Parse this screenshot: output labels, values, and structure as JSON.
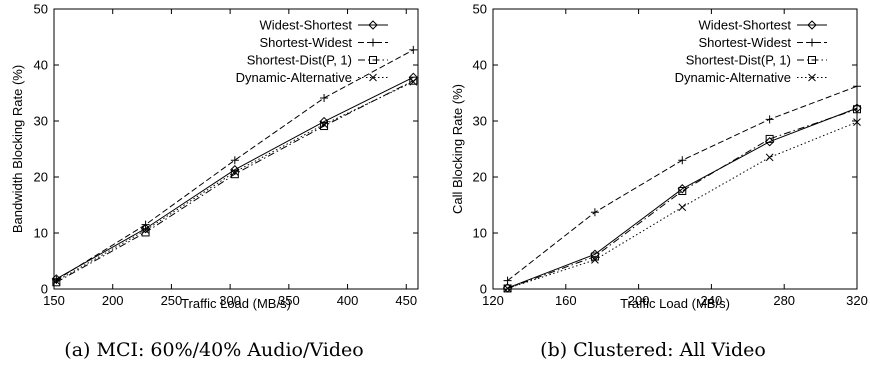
{
  "chart_data": [
    {
      "type": "line",
      "caption": "(a) MCI: 60%/40% Audio/Video",
      "xlabel": "Traffic Load (MB/s)",
      "ylabel": "Bandwidth Blocking Rate (%)",
      "xlim": [
        150,
        460
      ],
      "ylim": [
        0,
        50
      ],
      "xticks": [
        150,
        200,
        250,
        300,
        350,
        400,
        450
      ],
      "yticks": [
        0,
        10,
        20,
        30,
        40,
        50
      ],
      "grid": false,
      "legend": "top-right",
      "series": [
        {
          "name": "Widest-Shortest",
          "marker": "diamond",
          "dash": "solid",
          "x": [
            152,
            228,
            304,
            380,
            456
          ],
          "y": [
            1.8,
            10.8,
            21.3,
            29.9,
            37.8
          ]
        },
        {
          "name": "Shortest-Widest",
          "marker": "plus",
          "dash": "dashed",
          "x": [
            152,
            228,
            304,
            380,
            456
          ],
          "y": [
            1.6,
            11.5,
            23.0,
            34.1,
            42.7
          ]
        },
        {
          "name": "Shortest-Dist(P, 1)",
          "marker": "square",
          "dash": "dashdot",
          "x": [
            152,
            228,
            304,
            380,
            456
          ],
          "y": [
            1.2,
            10.1,
            20.5,
            29.1,
            37.2
          ]
        },
        {
          "name": "Dynamic-Alternative",
          "marker": "cross",
          "dash": "dotted",
          "x": [
            152,
            228,
            304,
            380,
            456
          ],
          "y": [
            1.4,
            10.5,
            20.9,
            29.4,
            37.0
          ]
        }
      ]
    },
    {
      "type": "line",
      "caption": "(b) Clustered: All Video",
      "xlabel": "Traffic Load (MB/s)",
      "ylabel": "Call Blocking Rate (%)",
      "xlim": [
        120,
        320
      ],
      "ylim": [
        0,
        50
      ],
      "xticks": [
        120,
        160,
        200,
        240,
        280,
        320
      ],
      "yticks": [
        0,
        10,
        20,
        30,
        40,
        50
      ],
      "grid": false,
      "legend": "top-right",
      "series": [
        {
          "name": "Widest-Shortest",
          "marker": "diamond",
          "dash": "solid",
          "x": [
            128,
            176,
            224,
            272,
            320
          ],
          "y": [
            0.2,
            6.2,
            17.9,
            26.3,
            32.3
          ]
        },
        {
          "name": "Shortest-Widest",
          "marker": "plus",
          "dash": "dashed",
          "x": [
            128,
            176,
            224,
            272,
            320
          ],
          "y": [
            1.5,
            13.7,
            23.0,
            30.3,
            36.2
          ]
        },
        {
          "name": "Shortest-Dist(P, 1)",
          "marker": "square",
          "dash": "dashdot",
          "x": [
            128,
            176,
            224,
            272,
            320
          ],
          "y": [
            0.1,
            5.8,
            17.5,
            26.8,
            32.1
          ]
        },
        {
          "name": "Dynamic-Alternative",
          "marker": "cross",
          "dash": "dotted",
          "x": [
            128,
            176,
            224,
            272,
            320
          ],
          "y": [
            0.1,
            5.2,
            14.6,
            23.5,
            29.8
          ]
        }
      ]
    }
  ]
}
